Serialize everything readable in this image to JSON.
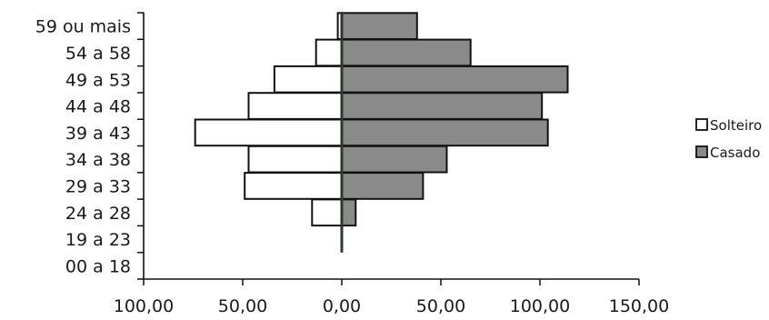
{
  "chart_data": {
    "type": "bar",
    "orientation": "horizontal",
    "title": "",
    "xlabel": "",
    "ylabel": "",
    "categories": [
      "59 ou mais",
      "54 a 58",
      "49 a 53",
      "44 a 48",
      "39 a 43",
      "34 a 38",
      "29 a 33",
      "24 a 28",
      "19 a 23",
      "00 a 18"
    ],
    "series": [
      {
        "name": "Solteiro",
        "values": [
          2,
          13,
          34,
          47,
          74,
          47,
          49,
          15,
          0,
          0
        ],
        "color": "#ffffff",
        "direction": "left"
      },
      {
        "name": "Casado",
        "values": [
          38,
          65,
          114,
          101,
          104,
          53,
          41,
          7,
          0,
          0
        ],
        "color": "#8a8a8a",
        "direction": "right"
      }
    ],
    "xlim": [
      -100,
      150
    ],
    "x_ticks": [
      -100,
      -50,
      0,
      50,
      100,
      150
    ],
    "x_tick_labels": [
      "100,00",
      "50,00",
      "0,00",
      "50,00",
      "100,00",
      "150,00"
    ],
    "grid": false,
    "legend_position": "right"
  }
}
